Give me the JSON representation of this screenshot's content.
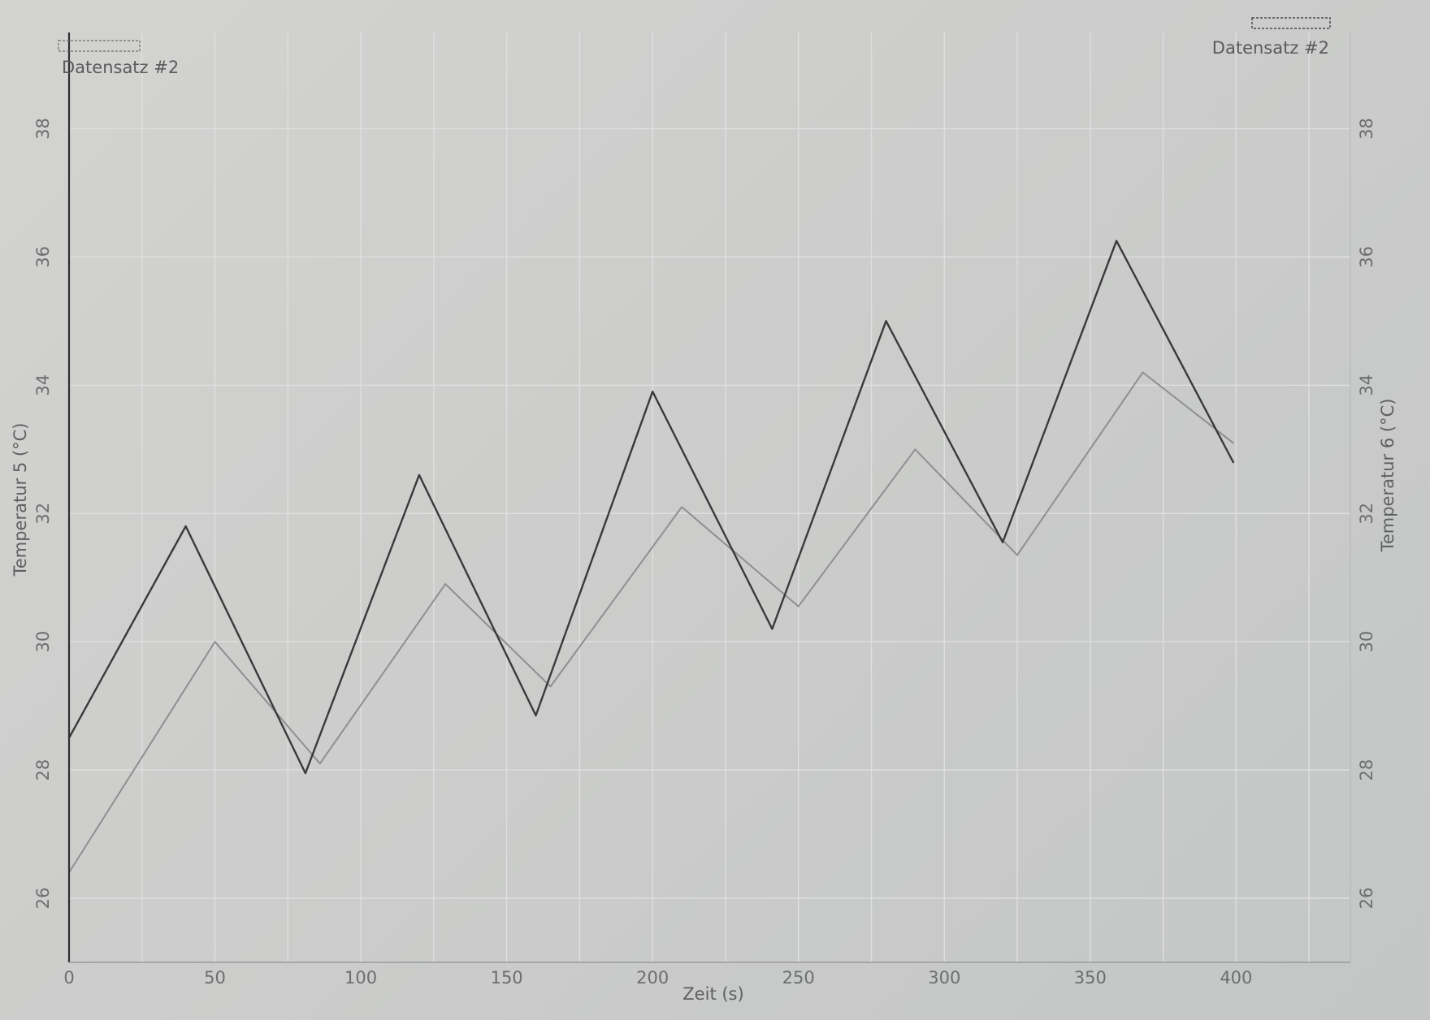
{
  "chart_data": {
    "type": "line",
    "title": "",
    "xlabel": "Zeit (s)",
    "ylabel_left": "Temperatur 5 (°C)",
    "ylabel_right": "Temperatur 6 (°C)",
    "xlim": [
      0,
      440
    ],
    "ylim_left": [
      25,
      39.5
    ],
    "ylim_right": [
      25,
      39.5
    ],
    "x_ticks": [
      0,
      50,
      100,
      150,
      200,
      250,
      300,
      350,
      400
    ],
    "y_ticks_left": [
      26,
      28,
      30,
      32,
      34,
      36,
      38
    ],
    "y_ticks_right": [
      26,
      28,
      30,
      32,
      34,
      36,
      38
    ],
    "grid": true,
    "series": [
      {
        "name": "Datensatz #2",
        "axis": "left",
        "color": "#3a3a3a",
        "x": [
          0,
          40,
          81,
          120,
          160,
          200,
          241,
          280,
          320,
          359,
          399
        ],
        "y": [
          28.5,
          31.8,
          27.95,
          32.6,
          28.85,
          33.9,
          30.2,
          35.0,
          31.55,
          36.25,
          32.8
        ]
      },
      {
        "name": "Datensatz #2",
        "axis": "right",
        "color": "#8e8f8f",
        "x": [
          0,
          50,
          86,
          129,
          165,
          210,
          250,
          290,
          325,
          368,
          399
        ],
        "y": [
          26.4,
          30.0,
          28.1,
          30.9,
          29.3,
          32.1,
          30.55,
          33.0,
          31.35,
          34.2,
          33.1
        ]
      }
    ],
    "legend": {
      "placement": "top-left and top-right",
      "entries": [
        "Datensatz #2",
        "Datensatz #2"
      ]
    }
  }
}
